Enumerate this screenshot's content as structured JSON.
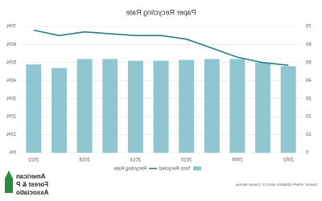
{
  "chart_data": {
    "type": "bar-line",
    "title": "Paper Recycling Rate",
    "categories": [
      "2002",
      null,
      "2006",
      null,
      "2010",
      null,
      "2014",
      null,
      "2018",
      null,
      "2022"
    ],
    "series": [
      {
        "name": "Tons Recycled",
        "type": "bar",
        "color": "#8fc6cf",
        "values": [
          48,
          50,
          52,
          52,
          51.5,
          51,
          51,
          52,
          52,
          47,
          49
        ]
      },
      {
        "name": "Recycling Rate",
        "type": "line",
        "axis": "y2",
        "color": "#2d7a82",
        "values": [
          48.5,
          50,
          53,
          58,
          63,
          65,
          65,
          66,
          67,
          65,
          68
        ]
      }
    ],
    "ylim": [
      0,
      70
    ],
    "yticks": [
      0,
      10,
      20,
      30,
      40,
      50,
      60,
      70
    ],
    "y2lim": [
      0,
      70
    ],
    "y2ticks": [
      {
        "value": 0,
        "label": "0%"
      },
      {
        "value": 10,
        "label": "10%"
      },
      {
        "value": 20,
        "label": "20%"
      },
      {
        "value": 30,
        "label": "30%"
      },
      {
        "value": 40,
        "label": "40%"
      },
      {
        "value": 50,
        "label": "50%"
      },
      {
        "value": 60,
        "label": "60%"
      },
      {
        "value": 70,
        "label": "70%"
      }
    ],
    "grid": true,
    "mirrored": true,
    "source": "Source: AF&PA Statistics and U.S. Census Bureau",
    "logo": [
      "American",
      "Forest & P",
      "Associatio"
    ]
  }
}
